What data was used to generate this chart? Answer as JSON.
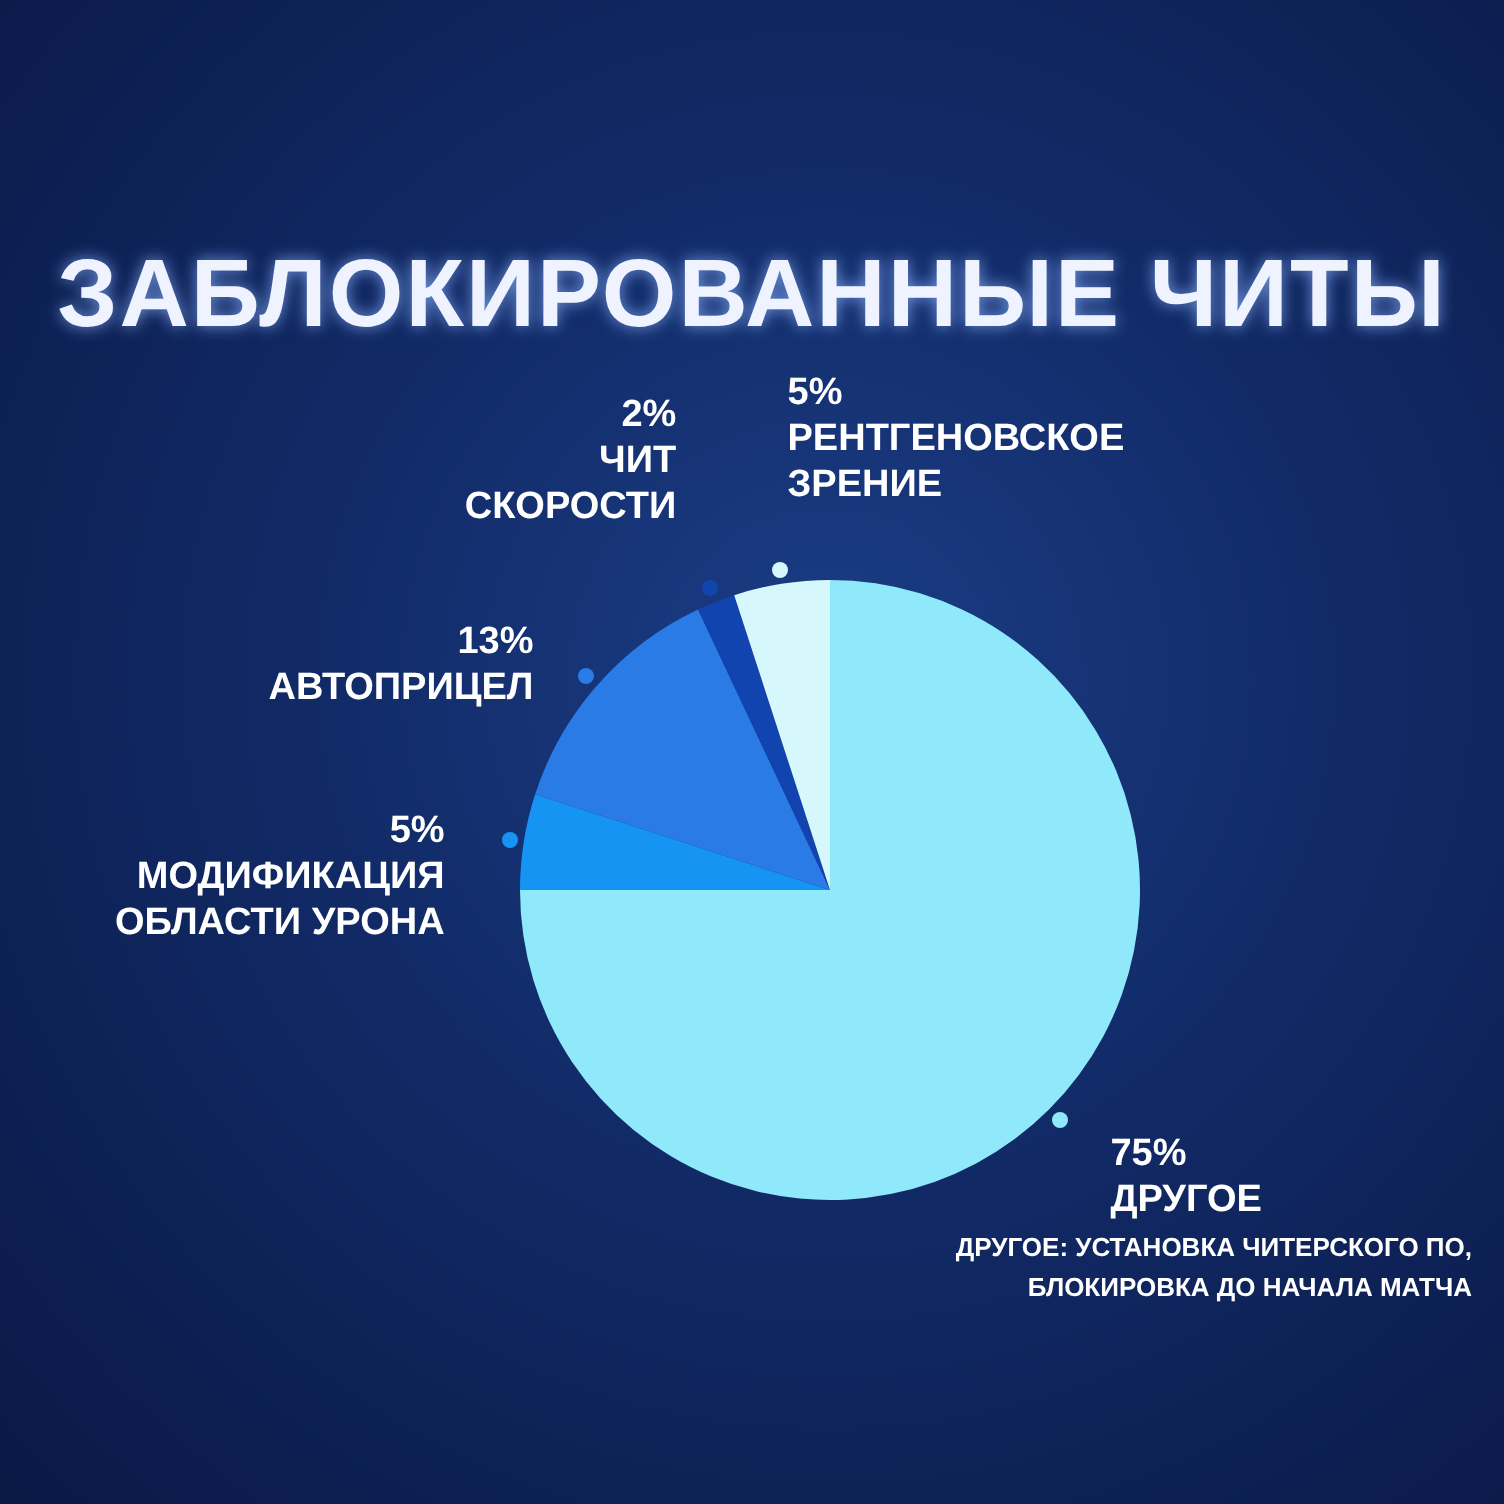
{
  "chart_data": {
    "type": "pie",
    "title": "ЗАБЛОКИРОВАННЫЕ ЧИТЫ",
    "categories": [
      "ДРУГОЕ",
      "МОДИФИКАЦИЯ ОБЛАСТИ УРОНА",
      "АВТОПРИЦЕЛ",
      "ЧИТ СКОРОСТИ",
      "РЕНТГЕНОВСКОЕ ЗРЕНИЕ"
    ],
    "values": [
      75,
      5,
      13,
      2,
      5
    ],
    "colors": [
      "#90e9fb",
      "#1694f4",
      "#2a7be6",
      "#1244b0",
      "#d6f8fd"
    ],
    "value_labels": [
      "75%",
      "5%",
      "13%",
      "2%",
      "5%"
    ],
    "annotations": [
      "ДРУГОЕ: УСТАНОВКА ЧИТЕРСКОГО ПО, БЛОКИРОВКА ДО НАЧАЛА МАТЧА"
    ]
  }
}
